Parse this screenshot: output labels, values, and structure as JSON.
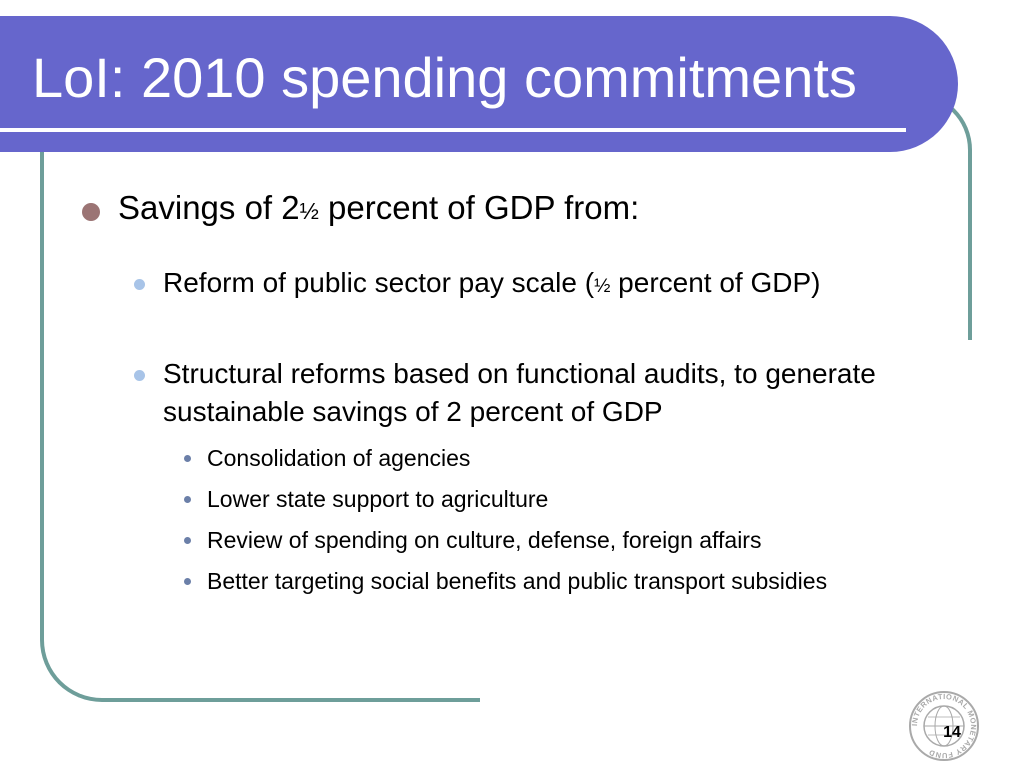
{
  "slide": {
    "title": "LoI: 2010 spending commitments",
    "page_number": "14"
  },
  "bullets": {
    "main": {
      "text_a": "Savings of 2",
      "frac": "½",
      "text_b": " percent of GDP from:"
    },
    "sub1": {
      "text_a": "Reform of public sector pay scale (",
      "frac": "½",
      "text_b": " percent of GDP)"
    },
    "sub2": {
      "text": "Structural reforms based on functional audits, to generate sustainable savings of 2 percent of GDP"
    },
    "sub2_items": [
      "Consolidation of agencies",
      "Lower state support to agriculture",
      "Review of spending on culture, defense, foreign affairs",
      "Better targeting social benefits and public transport subsidies"
    ]
  },
  "logo": {
    "icon": "imf-seal-icon",
    "ring_text": "INTERNATIONAL MONETARY FUND"
  },
  "colors": {
    "title_band": "#6666cc",
    "frame": "#6e9e9a",
    "bullet_main": "#9b7474",
    "bullet_sub": "#a8c4e8",
    "bullet_subsub": "#6b7fa8"
  }
}
